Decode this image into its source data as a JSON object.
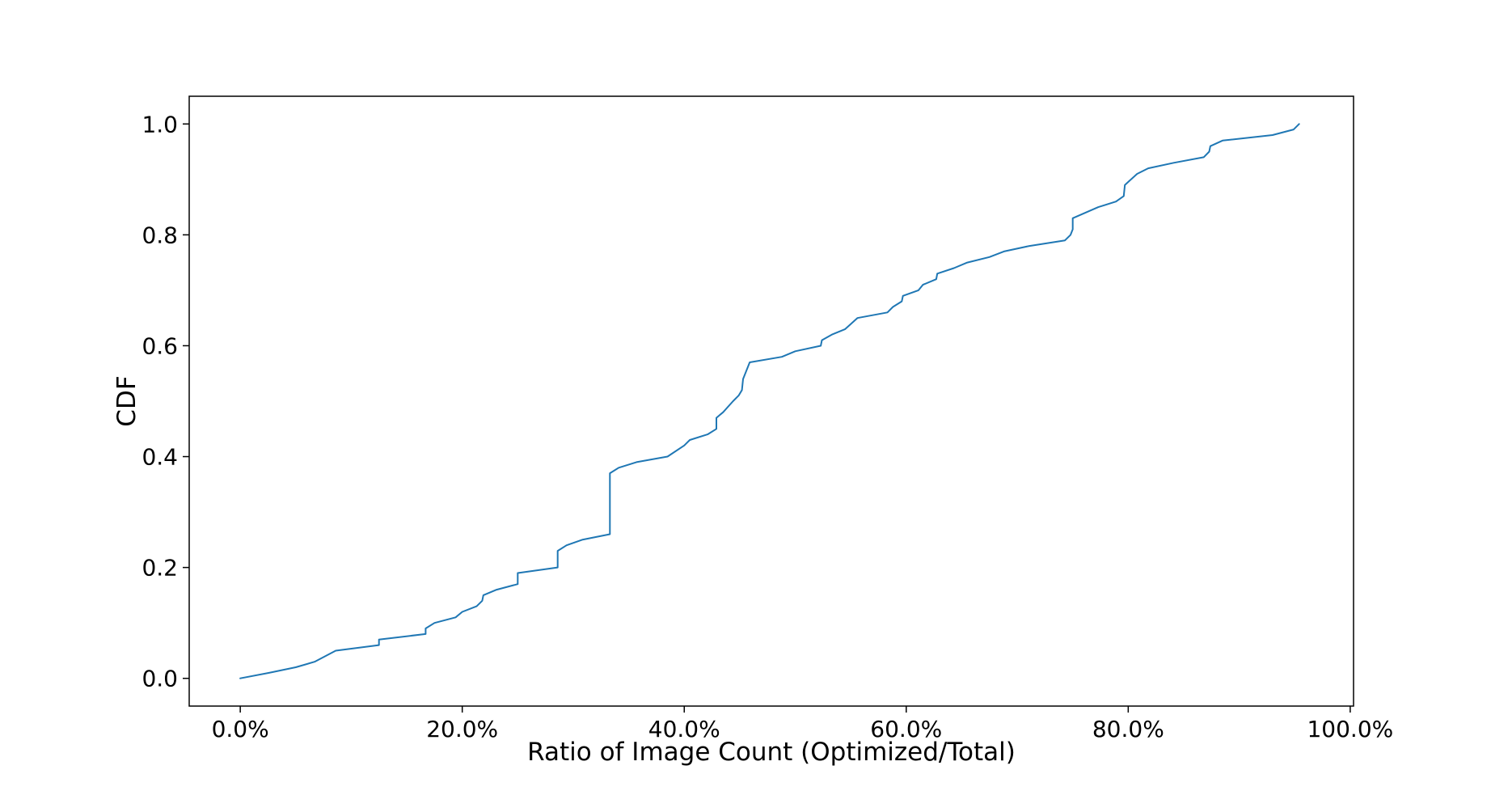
{
  "chart_data": {
    "type": "line",
    "title": "",
    "xlabel": "Ratio of Image Count (Optimized/Total)",
    "ylabel": "CDF",
    "xlim": [
      -4.6,
      100.3
    ],
    "ylim": [
      -0.05,
      1.05
    ],
    "x_ticks": [
      0,
      20,
      40,
      60,
      80,
      100
    ],
    "x_tick_labels": [
      "0.0%",
      "20.0%",
      "40.0%",
      "60.0%",
      "80.0%",
      "100.0%"
    ],
    "y_ticks": [
      0.0,
      0.2,
      0.4,
      0.6,
      0.8,
      1.0
    ],
    "y_tick_labels": [
      "0.0",
      "0.2",
      "0.4",
      "0.6",
      "0.8",
      "1.0"
    ],
    "grid": false,
    "legend": "none",
    "line_color": "#1f77b4",
    "series": [
      {
        "x": [
          0.0,
          2.6,
          5.0,
          6.7,
          8.6,
          12.5,
          12.5,
          16.7,
          16.7,
          17.5,
          19.4,
          20.0,
          21.3,
          21.8,
          21.9,
          23.1,
          25.0,
          25.0,
          28.6,
          28.6,
          29.4,
          30.8,
          33.3,
          33.3,
          34.1,
          35.7,
          38.5,
          40.0,
          40.5,
          42.1,
          42.9,
          42.9,
          43.5,
          44.4,
          44.9,
          45.2,
          45.3,
          45.9,
          48.8,
          50.0,
          52.3,
          52.4,
          53.3,
          54.5,
          55.6,
          58.3,
          58.8,
          59.6,
          59.7,
          61.1,
          61.5,
          62.7,
          62.8,
          64.3,
          65.5,
          67.5,
          68.8,
          71.1,
          74.3,
          74.8,
          75.0,
          75.0,
          77.3,
          78.9,
          79.6,
          79.7,
          80.8,
          81.8,
          84.1,
          86.8,
          87.3,
          87.4,
          88.5,
          93.0,
          94.9,
          95.4
        ],
        "y": [
          0.0,
          0.01,
          0.02,
          0.03,
          0.05,
          0.06,
          0.07,
          0.08,
          0.09,
          0.1,
          0.11,
          0.12,
          0.13,
          0.14,
          0.15,
          0.16,
          0.17,
          0.19,
          0.2,
          0.23,
          0.24,
          0.25,
          0.26,
          0.37,
          0.38,
          0.39,
          0.4,
          0.42,
          0.43,
          0.44,
          0.45,
          0.47,
          0.48,
          0.5,
          0.51,
          0.52,
          0.54,
          0.57,
          0.58,
          0.59,
          0.6,
          0.61,
          0.62,
          0.63,
          0.65,
          0.66,
          0.67,
          0.68,
          0.69,
          0.7,
          0.71,
          0.72,
          0.73,
          0.74,
          0.75,
          0.76,
          0.77,
          0.78,
          0.79,
          0.8,
          0.81,
          0.83,
          0.85,
          0.86,
          0.87,
          0.89,
          0.91,
          0.92,
          0.93,
          0.94,
          0.95,
          0.96,
          0.97,
          0.98,
          0.99,
          1.0
        ]
      }
    ]
  }
}
